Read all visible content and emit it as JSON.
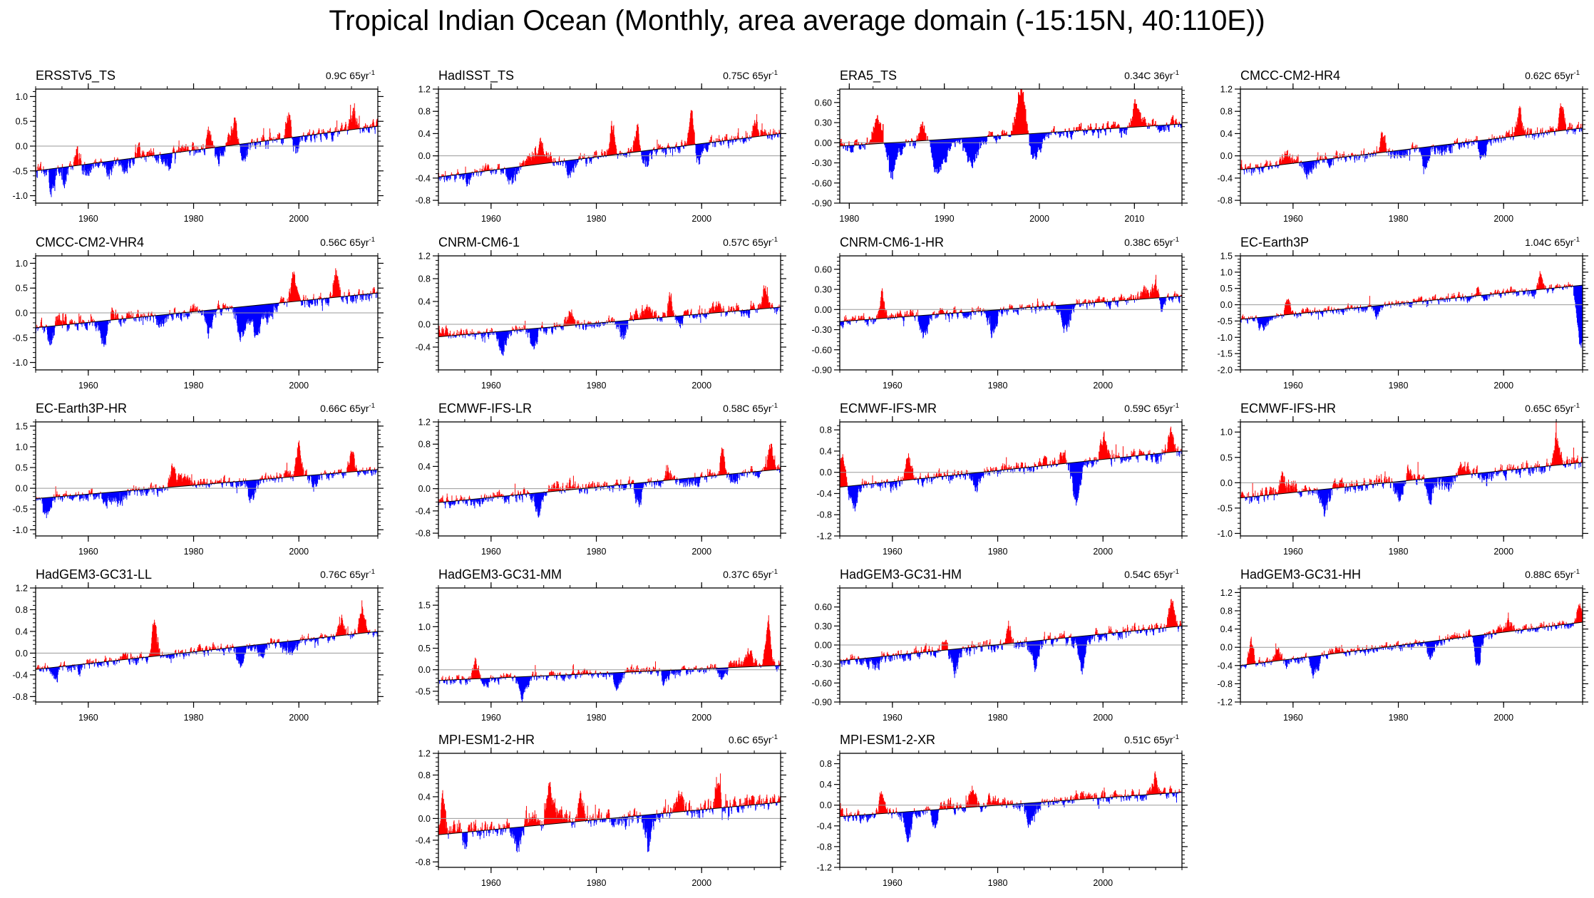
{
  "figure": {
    "title": "Tropical Indian Ocean (Monthly, area average domain (-15:15N, 40:110E))",
    "colors": {
      "positive": "#ff0000",
      "negative": "#0000ff",
      "zero_line": "#9a9a9a",
      "trend_line": "#000000",
      "axis": "#000000"
    },
    "bar_unit": "monthly anomaly"
  },
  "chart_data": [
    {
      "type": "bar",
      "title": "ERSSTv5_TS",
      "trend_label": "0.9C 65yr",
      "trend_sup": "-1",
      "xlim": [
        1950,
        2015
      ],
      "ylim": [
        -1.15,
        1.15
      ],
      "xticks": [
        1960,
        1980,
        2000
      ],
      "yticks": [
        -1.0,
        -0.5,
        0.0,
        0.5,
        1.0
      ],
      "ytick_digits": 1,
      "trend": [
        -0.5,
        0.4
      ],
      "amp": 0.25,
      "events": [
        [
          1983,
          0.35
        ],
        [
          1987.8,
          0.35
        ],
        [
          1998.1,
          0.55
        ],
        [
          2010.2,
          0.3
        ]
      ],
      "anomaly": [
        [
          1953,
          -0.35
        ],
        [
          1955.5,
          -0.25
        ],
        [
          1958,
          0.25
        ],
        [
          1964,
          -0.3
        ],
        [
          1969.5,
          0.25
        ],
        [
          1975,
          -0.25
        ],
        [
          1984.5,
          -0.25
        ],
        [
          1989.5,
          -0.25
        ],
        [
          1999.3,
          -0.3
        ]
      ]
    },
    {
      "type": "bar",
      "title": "HadISST_TS",
      "trend_label": "0.75C 65yr",
      "trend_sup": "-1",
      "xlim": [
        1950,
        2015
      ],
      "ylim": [
        -0.85,
        1.2
      ],
      "xticks": [
        1960,
        1980,
        2000
      ],
      "yticks": [
        -0.8,
        -0.4,
        0.0,
        0.4,
        0.8,
        1.2
      ],
      "ytick_digits": 1,
      "trend": [
        -0.38,
        0.4
      ],
      "amp": 0.2,
      "events": [
        [
          1983,
          0.55
        ],
        [
          1987.8,
          0.4
        ],
        [
          1998.1,
          0.6
        ],
        [
          2010.2,
          0.3
        ]
      ],
      "anomaly": [
        [
          1955.5,
          -0.25
        ],
        [
          1964,
          -0.3
        ],
        [
          1969.5,
          0.2
        ],
        [
          1975,
          -0.25
        ],
        [
          1989.5,
          -0.25
        ],
        [
          1999.3,
          -0.35
        ]
      ]
    },
    {
      "type": "bar",
      "title": "ERA5_TS",
      "trend_label": "0.34C 36yr",
      "trend_sup": "-1",
      "xlim": [
        1979,
        2015
      ],
      "ylim": [
        -0.9,
        0.8
      ],
      "xticks": [
        1980,
        1990,
        2000,
        2010
      ],
      "yticks": [
        -0.9,
        -0.6,
        -0.3,
        0.0,
        0.3,
        0.6
      ],
      "ytick_digits": 2,
      "trend": [
        -0.05,
        0.28
      ],
      "amp": 0.18,
      "events": [
        [
          1983,
          0.45
        ],
        [
          1987.8,
          0.35
        ],
        [
          1998.1,
          0.75
        ],
        [
          2010.2,
          0.4
        ]
      ],
      "anomaly": [
        [
          1984.5,
          -0.5
        ],
        [
          1989.5,
          -0.4
        ],
        [
          1993,
          -0.25
        ],
        [
          1999.3,
          -0.35
        ]
      ]
    },
    {
      "type": "bar",
      "title": "CMCC-CM2-HR4",
      "trend_label": "0.62C 65yr",
      "trend_sup": "-1",
      "xlim": [
        1950,
        2015
      ],
      "ylim": [
        -0.85,
        1.2
      ],
      "xticks": [
        1960,
        1980,
        2000
      ],
      "yticks": [
        -0.8,
        -0.4,
        0.0,
        0.4,
        0.8,
        1.2
      ],
      "ytick_digits": 1,
      "trend": [
        -0.25,
        0.5
      ],
      "amp": 0.2,
      "events": [
        [
          1977,
          0.35
        ],
        [
          2003,
          0.45
        ],
        [
          2011,
          0.5
        ]
      ],
      "anomaly": [
        [
          1963,
          -0.3
        ],
        [
          1985,
          -0.35
        ],
        [
          1996,
          -0.3
        ]
      ]
    },
    {
      "type": "bar",
      "title": "CMCC-CM2-VHR4",
      "trend_label": "0.56C 65yr",
      "trend_sup": "-1",
      "xlim": [
        1950,
        2015
      ],
      "ylim": [
        -1.15,
        1.15
      ],
      "xticks": [
        1960,
        1980,
        2000
      ],
      "yticks": [
        -1.0,
        -0.5,
        0.0,
        0.5,
        1.0
      ],
      "ytick_digits": 1,
      "trend": [
        -0.3,
        0.4
      ],
      "amp": 0.25,
      "events": [
        [
          1999,
          0.5
        ],
        [
          2007,
          0.55
        ]
      ],
      "anomaly": [
        [
          1953,
          -0.35
        ],
        [
          1963,
          -0.45
        ],
        [
          1983,
          -0.5
        ],
        [
          1992,
          -0.55
        ],
        [
          1989,
          -0.35
        ]
      ]
    },
    {
      "type": "bar",
      "title": "CNRM-CM6-1",
      "trend_label": "0.57C 65yr",
      "trend_sup": "-1",
      "xlim": [
        1950,
        2015
      ],
      "ylim": [
        -0.8,
        1.2
      ],
      "xticks": [
        1960,
        1980,
        2000
      ],
      "yticks": [
        -0.4,
        0.0,
        0.4,
        0.8,
        1.2
      ],
      "ytick_digits": 1,
      "trend": [
        -0.22,
        0.3
      ],
      "amp": 0.18,
      "events": [
        [
          1975,
          0.3
        ],
        [
          1994,
          0.35
        ],
        [
          2012,
          0.4
        ]
      ],
      "anomaly": [
        [
          1962,
          -0.35
        ],
        [
          1968,
          -0.3
        ],
        [
          1985,
          -0.3
        ]
      ]
    },
    {
      "type": "bar",
      "title": "CNRM-CM6-1-HR",
      "trend_label": "0.38C 65yr",
      "trend_sup": "-1",
      "xlim": [
        1950,
        2015
      ],
      "ylim": [
        -0.9,
        0.8
      ],
      "xticks": [
        1960,
        1980,
        2000
      ],
      "yticks": [
        -0.9,
        -0.6,
        -0.3,
        0.0,
        0.3,
        0.6
      ],
      "ytick_digits": 2,
      "trend": [
        -0.18,
        0.2
      ],
      "amp": 0.15,
      "events": [
        [
          1958,
          0.35
        ],
        [
          2010,
          0.35
        ]
      ],
      "anomaly": [
        [
          1966,
          -0.35
        ],
        [
          1979,
          -0.35
        ],
        [
          1993,
          -0.3
        ]
      ]
    },
    {
      "type": "bar",
      "title": "EC-Earth3P",
      "trend_label": "1.04C 65yr",
      "trend_sup": "-1",
      "xlim": [
        1950,
        2015
      ],
      "ylim": [
        -2.0,
        1.5
      ],
      "xticks": [
        1960,
        1980,
        2000
      ],
      "yticks": [
        -2.0,
        -1.5,
        -1.0,
        -0.5,
        0.0,
        0.5,
        1.0,
        1.5
      ],
      "ytick_digits": 1,
      "trend": [
        -0.45,
        0.6
      ],
      "amp": 0.25,
      "events": [
        [
          1959,
          0.5
        ],
        [
          1995,
          0.5
        ],
        [
          2007,
          0.7
        ]
      ],
      "anomaly": [
        [
          1954,
          -0.3
        ],
        [
          1976,
          -0.3
        ],
        [
          2014.6,
          -1.9
        ]
      ]
    },
    {
      "type": "bar",
      "title": "EC-Earth3P-HR",
      "trend_label": "0.66C 65yr",
      "trend_sup": "-1",
      "xlim": [
        1950,
        2015
      ],
      "ylim": [
        -1.15,
        1.6
      ],
      "xticks": [
        1960,
        1980,
        2000
      ],
      "yticks": [
        -1.0,
        -0.5,
        0.0,
        0.5,
        1.0,
        1.5
      ],
      "ytick_digits": 1,
      "trend": [
        -0.25,
        0.45
      ],
      "amp": 0.25,
      "events": [
        [
          1976,
          0.4
        ],
        [
          2000,
          0.85
        ],
        [
          2010,
          0.45
        ]
      ],
      "anomaly": [
        [
          1952,
          -0.4
        ],
        [
          1966,
          -0.35
        ],
        [
          1991,
          -0.45
        ]
      ]
    },
    {
      "type": "bar",
      "title": "ECMWF-IFS-LR",
      "trend_label": "0.58C 65yr",
      "trend_sup": "-1",
      "xlim": [
        1950,
        2015
      ],
      "ylim": [
        -0.85,
        1.2
      ],
      "xticks": [
        1960,
        1980,
        2000
      ],
      "yticks": [
        -0.8,
        -0.4,
        0.0,
        0.4,
        0.8,
        1.2
      ],
      "ytick_digits": 1,
      "trend": [
        -0.25,
        0.35
      ],
      "amp": 0.2,
      "events": [
        [
          2004,
          0.45
        ],
        [
          2013,
          0.45
        ]
      ],
      "anomaly": [
        [
          1969,
          -0.3
        ],
        [
          1988,
          -0.35
        ]
      ]
    },
    {
      "type": "bar",
      "title": "ECMWF-IFS-MR",
      "trend_label": "0.59C 65yr",
      "trend_sup": "-1",
      "xlim": [
        1950,
        2015
      ],
      "ylim": [
        -1.2,
        0.95
      ],
      "xticks": [
        1960,
        1980,
        2000
      ],
      "yticks": [
        -1.2,
        -0.8,
        -0.4,
        0.0,
        0.4,
        0.8
      ],
      "ytick_digits": 1,
      "trend": [
        -0.28,
        0.4
      ],
      "amp": 0.22,
      "events": [
        [
          1950.5,
          0.7
        ],
        [
          1963,
          0.45
        ],
        [
          2000,
          0.35
        ],
        [
          2013,
          0.4
        ]
      ],
      "anomaly": [
        [
          1952.5,
          -0.4
        ],
        [
          1995,
          -0.65
        ],
        [
          1976,
          -0.3
        ]
      ]
    },
    {
      "type": "bar",
      "title": "ECMWF-IFS-HR",
      "trend_label": "0.65C 65yr",
      "trend_sup": "-1",
      "xlim": [
        1950,
        2015
      ],
      "ylim": [
        -1.05,
        1.2
      ],
      "xticks": [
        1960,
        1980,
        2000
      ],
      "yticks": [
        -1.0,
        -0.5,
        0.0,
        0.5,
        1.0
      ],
      "ytick_digits": 1,
      "trend": [
        -0.3,
        0.4
      ],
      "amp": 0.25,
      "events": [
        [
          1958,
          0.4
        ],
        [
          1982,
          0.3
        ],
        [
          2010,
          0.55
        ]
      ],
      "anomaly": [
        [
          1966,
          -0.45
        ],
        [
          1980,
          -0.35
        ],
        [
          1986,
          -0.45
        ]
      ]
    },
    {
      "type": "bar",
      "title": "HadGEM3-GC31-LL",
      "trend_label": "0.76C 65yr",
      "trend_sup": "-1",
      "xlim": [
        1950,
        2015
      ],
      "ylim": [
        -0.9,
        1.2
      ],
      "xticks": [
        1960,
        1980,
        2000
      ],
      "yticks": [
        -0.8,
        -0.4,
        0.0,
        0.4,
        0.8,
        1.2
      ],
      "ytick_digits": 1,
      "trend": [
        -0.3,
        0.4
      ],
      "amp": 0.18,
      "events": [
        [
          1972.5,
          0.65
        ],
        [
          2012,
          0.45
        ],
        [
          2008,
          0.3
        ]
      ],
      "anomaly": [
        [
          1954,
          -0.25
        ],
        [
          1989,
          -0.35
        ],
        [
          1993,
          -0.3
        ]
      ]
    },
    {
      "type": "bar",
      "title": "HadGEM3-GC31-MM",
      "trend_label": "0.37C 65yr",
      "trend_sup": "-1",
      "xlim": [
        1950,
        2015
      ],
      "ylim": [
        -0.75,
        1.9
      ],
      "xticks": [
        1960,
        1980,
        2000
      ],
      "yticks": [
        -0.5,
        0.0,
        0.5,
        1.0,
        1.5
      ],
      "ytick_digits": 1,
      "trend": [
        -0.25,
        0.1
      ],
      "amp": 0.2,
      "events": [
        [
          1957,
          0.4
        ],
        [
          2009,
          0.25
        ],
        [
          2012.6,
          1.0
        ]
      ],
      "anomaly": [
        [
          1966,
          -0.25
        ],
        [
          1984,
          -0.3
        ],
        [
          1993,
          -0.3
        ],
        [
          2004,
          -0.25
        ]
      ]
    },
    {
      "type": "bar",
      "title": "HadGEM3-GC31-HM",
      "trend_label": "0.54C 65yr",
      "trend_sup": "-1",
      "xlim": [
        1950,
        2015
      ],
      "ylim": [
        -0.9,
        0.9
      ],
      "xticks": [
        1960,
        1980,
        2000
      ],
      "yticks": [
        -0.9,
        -0.6,
        -0.3,
        0.0,
        0.3,
        0.6
      ],
      "ytick_digits": 2,
      "trend": [
        -0.25,
        0.3
      ],
      "amp": 0.18,
      "events": [
        [
          1982,
          0.3
        ],
        [
          2013,
          0.45
        ]
      ],
      "anomaly": [
        [
          1972,
          -0.35
        ],
        [
          1987,
          -0.35
        ],
        [
          1996,
          -0.5
        ]
      ]
    },
    {
      "type": "bar",
      "title": "HadGEM3-GC31-HH",
      "trend_label": "0.88C 65yr",
      "trend_sup": "-1",
      "xlim": [
        1950,
        2015
      ],
      "ylim": [
        -1.2,
        1.3
      ],
      "xticks": [
        1960,
        1980,
        2000
      ],
      "yticks": [
        -1.2,
        -0.8,
        -0.4,
        0.0,
        0.4,
        0.8,
        1.2
      ],
      "ytick_digits": 1,
      "trend": [
        -0.4,
        0.55
      ],
      "amp": 0.2,
      "events": [
        [
          1952,
          0.45
        ],
        [
          1957,
          0.35
        ],
        [
          2014.5,
          0.4
        ]
      ],
      "anomaly": [
        [
          1964,
          -0.45
        ],
        [
          1986,
          -0.3
        ],
        [
          1995,
          -0.55
        ]
      ]
    },
    {
      "type": "bar",
      "title": "MPI-ESM1-2-HR",
      "trend_label": "0.6C 65yr",
      "trend_sup": "-1",
      "xlim": [
        1950,
        2015
      ],
      "ylim": [
        -0.9,
        1.2
      ],
      "xticks": [
        1960,
        1980,
        2000
      ],
      "yticks": [
        -0.8,
        -0.4,
        0.0,
        0.4,
        0.8,
        1.2
      ],
      "ytick_digits": 1,
      "trend": [
        -0.3,
        0.3
      ],
      "amp": 0.28,
      "events": [
        [
          1950.8,
          0.7
        ],
        [
          1971,
          0.5
        ],
        [
          1977,
          0.45
        ],
        [
          2003,
          0.5
        ]
      ],
      "anomaly": [
        [
          1955,
          -0.45
        ],
        [
          1965,
          -0.4
        ],
        [
          1990,
          -0.5
        ]
      ]
    },
    {
      "type": "bar",
      "title": "MPI-ESM1-2-XR",
      "trend_label": "0.51C 65yr",
      "trend_sup": "-1",
      "xlim": [
        1950,
        2015
      ],
      "ylim": [
        -1.2,
        1.0
      ],
      "xticks": [
        1960,
        1980,
        2000
      ],
      "yticks": [
        -1.2,
        -0.8,
        -0.4,
        0.0,
        0.4,
        0.8
      ],
      "ytick_digits": 1,
      "trend": [
        -0.22,
        0.25
      ],
      "amp": 0.2,
      "events": [
        [
          1958,
          0.4
        ],
        [
          1975,
          0.35
        ],
        [
          2010,
          0.35
        ]
      ],
      "anomaly": [
        [
          1963,
          -0.5
        ],
        [
          1968,
          -0.3
        ],
        [
          1986,
          -0.35
        ]
      ]
    }
  ]
}
